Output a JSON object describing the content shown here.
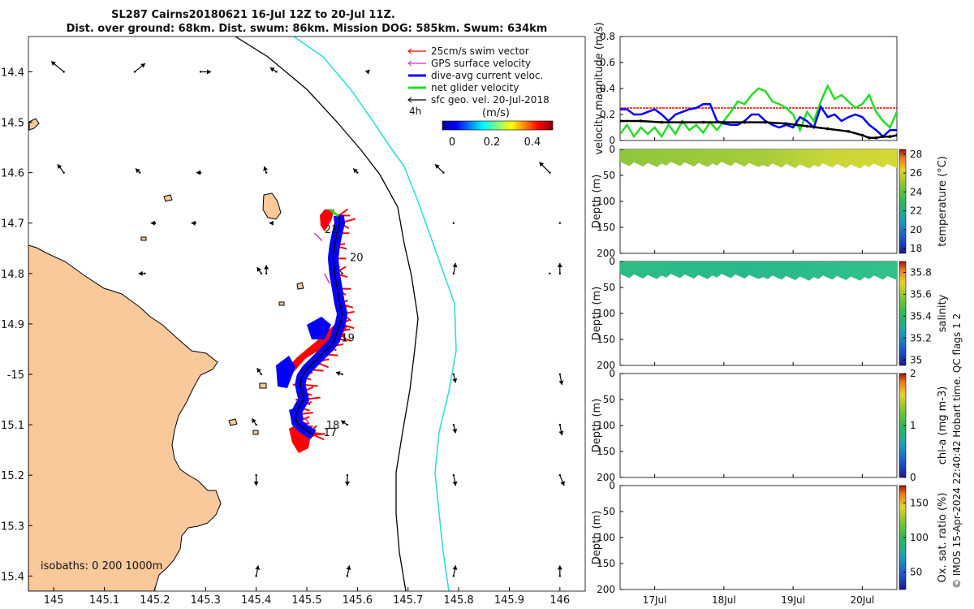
{
  "title_line1": "SL287 Cairns20180621 16-Jul 12Z to 20-Jul 11Z.",
  "title_line2": "Dist. over ground: 68km. Dist. swum: 86km. Mission DOG: 585km. Swum: 634km",
  "footer_text": "© IMOS 15-Apr-2024 22:40:42 Hobart time. QC flags 1  2",
  "colors": {
    "land": "#f9c89b",
    "ocean": "#ffffff",
    "swim": "#ff0000",
    "gps": "#cc33cc",
    "current": "#0000ff",
    "net": "#22dd22",
    "geo": "#000000",
    "isobath200": "#000000",
    "isobath1000": "#33dddd"
  },
  "chart_data": [
    {
      "id": "map",
      "type": "scatter",
      "title": "glider track map",
      "xlim": [
        144.95,
        146.05
      ],
      "ylim": [
        -15.43,
        -14.33
      ],
      "x_ticks": [
        145,
        145.1,
        145.2,
        145.3,
        145.4,
        145.5,
        145.6,
        145.7,
        145.8,
        145.9,
        146
      ],
      "x_tick_labels": [
        "145",
        "145.1",
        "145.2",
        "145.3",
        "145.4",
        "145.5",
        "145.6",
        "145.7",
        "145.8",
        "145.9",
        "146"
      ],
      "y_ticks": [
        -14.4,
        -14.5,
        -14.6,
        -14.7,
        -14.8,
        -14.9,
        -15,
        -15.1,
        -15.2,
        -15.3,
        -15.4
      ],
      "y_tick_labels": [
        "14.4",
        "14.5",
        "14.6",
        "14.7",
        "14.8",
        "14.9",
        "-15",
        "15.1",
        "15.2",
        "15.3",
        "15.4"
      ],
      "legend": {
        "placement": "top-right",
        "entries": [
          "25cm/s swim vector",
          "GPS surface velocity",
          "dive-avg current veloc.",
          "net glider velocity",
          "sfc geo. vel. 20-Jul-2018"
        ],
        "scale_label": "4h"
      },
      "colorbar": {
        "label": "(m/s)",
        "ticks": [
          "0",
          "0.2",
          "0.4"
        ],
        "range": [
          -0.05,
          0.5
        ]
      },
      "isobaths_label": "isobaths: 0   200  1000m",
      "track": {
        "lon": [
          145.563,
          145.565,
          145.56,
          145.555,
          145.552,
          145.555,
          145.56,
          145.565,
          145.57,
          145.566,
          145.56,
          145.556,
          145.545,
          145.53,
          145.515,
          145.5,
          145.49,
          145.487,
          145.49,
          145.494,
          145.485,
          145.478,
          145.48,
          145.49,
          145.505,
          145.513
        ],
        "lat": [
          -14.685,
          -14.7,
          -14.72,
          -14.745,
          -14.77,
          -14.8,
          -14.83,
          -14.86,
          -14.88,
          -14.9,
          -14.915,
          -14.93,
          -14.945,
          -14.96,
          -14.975,
          -14.99,
          -15.005,
          -15.02,
          -15.035,
          -15.05,
          -15.065,
          -15.08,
          -15.095,
          -15.105,
          -15.115,
          -15.12
        ]
      },
      "day_labels": [
        {
          "text": "21",
          "lon": 145.535,
          "lat": -14.72
        },
        {
          "text": "20",
          "lon": 145.585,
          "lat": -14.775
        },
        {
          "text": "19",
          "lon": 145.568,
          "lat": -14.935
        },
        {
          "text": "18",
          "lon": 145.538,
          "lat": -15.108
        },
        {
          "text": "17",
          "lon": 145.533,
          "lat": -15.122
        }
      ],
      "geo_vectors": {
        "lon": [
          145.02,
          145.16,
          145.29,
          145.44,
          145.62,
          145.02,
          145.17,
          145.29,
          145.42,
          145.6,
          145.77,
          145.98,
          145.2,
          145.28,
          145.43,
          145.79,
          146.0,
          145.18,
          145.42,
          145.98,
          145.41,
          145.57,
          145.79,
          146.0,
          145.41,
          145.57,
          145.79,
          146.0,
          145.4,
          145.58,
          145.79,
          146.0,
          145.4,
          145.58,
          145.79,
          146.0,
          145.4,
          145.58,
          145.79,
          146.0
        ],
        "lat": [
          -14.4,
          -14.4,
          -14.4,
          -14.4,
          -14.4,
          -14.6,
          -14.6,
          -14.6,
          -14.6,
          -14.6,
          -14.6,
          -14.6,
          -14.7,
          -14.7,
          -14.7,
          -14.7,
          -14.7,
          -14.8,
          -14.8,
          -14.8,
          -14.8,
          -14.8,
          -14.8,
          -14.8,
          -15.0,
          -15.0,
          -15.0,
          -15.0,
          -15.1,
          -15.1,
          -15.1,
          -15.1,
          -15.2,
          -15.2,
          -15.2,
          -15.2,
          -15.4,
          -15.4,
          -15.4,
          -15.4
        ],
        "u": [
          -0.06,
          0.05,
          0.05,
          -0.03,
          0.01,
          -0.03,
          -0.02,
          -0.02,
          -0.01,
          -0.02,
          -0.04,
          -0.05,
          -0.02,
          -0.02,
          -0.01,
          0.0,
          0.0,
          -0.03,
          0.0,
          0.0,
          -0.02,
          -0.03,
          0.01,
          0.0,
          -0.02,
          -0.03,
          0.01,
          0.01,
          -0.02,
          -0.03,
          0.01,
          0.01,
          0.0,
          0.0,
          0.01,
          0.02,
          0.01,
          0.01,
          0.01,
          0.0
        ],
        "v": [
          0.05,
          0.04,
          0.0,
          0.02,
          0.01,
          0.04,
          0.02,
          0.0,
          0.03,
          0.02,
          0.04,
          0.05,
          0.0,
          0.0,
          0.0,
          0.0,
          0.0,
          0.0,
          0.04,
          0.0,
          0.03,
          0.04,
          0.05,
          0.05,
          0.03,
          0.01,
          -0.04,
          -0.05,
          0.03,
          0.02,
          -0.04,
          -0.05,
          -0.05,
          -0.05,
          -0.05,
          -0.05,
          0.05,
          0.05,
          0.05,
          0.05
        ]
      }
    },
    {
      "id": "velocity",
      "type": "line",
      "ylabel": "velocity magnitude (m/s)",
      "ylim": [
        0,
        0.8
      ],
      "y_ticks": [
        0,
        0.2,
        0.4,
        0.6,
        0.8
      ],
      "y_tick_labels": [
        "0",
        "0.2",
        "0.4",
        "0.6",
        "0.8"
      ],
      "xlim": [
        16.5,
        20.5
      ],
      "x_ticks": [
        17,
        18,
        19,
        20
      ],
      "x_tick_labels": [
        "17Jul",
        "18Jul",
        "19Jul",
        "20Jul"
      ],
      "series": [
        {
          "name": "swim",
          "color": "#ff0000",
          "x": [
            16.5,
            20.5
          ],
          "y": [
            0.25,
            0.25
          ]
        },
        {
          "name": "net glider velocity",
          "color": "#22dd22",
          "x": [
            16.5,
            16.6,
            16.7,
            16.8,
            16.9,
            17.0,
            17.1,
            17.2,
            17.3,
            17.4,
            17.5,
            17.6,
            17.7,
            17.8,
            17.9,
            18.0,
            18.1,
            18.2,
            18.3,
            18.4,
            18.5,
            18.6,
            18.7,
            18.8,
            18.9,
            19.0,
            19.1,
            19.2,
            19.3,
            19.4,
            19.5,
            19.6,
            19.7,
            19.8,
            19.9,
            20.0,
            20.1,
            20.2,
            20.3,
            20.4,
            20.5
          ],
          "y": [
            0.05,
            0.12,
            0.03,
            0.1,
            0.05,
            0.1,
            0.03,
            0.12,
            0.05,
            0.15,
            0.08,
            0.12,
            0.06,
            0.14,
            0.08,
            0.15,
            0.22,
            0.3,
            0.28,
            0.35,
            0.4,
            0.38,
            0.3,
            0.28,
            0.25,
            0.2,
            0.08,
            0.22,
            0.15,
            0.3,
            0.42,
            0.32,
            0.35,
            0.3,
            0.25,
            0.28,
            0.35,
            0.22,
            0.15,
            0.1,
            0.22
          ]
        },
        {
          "name": "dive-avg current",
          "color": "#0000ff",
          "x": [
            16.5,
            16.6,
            16.7,
            16.8,
            16.9,
            17.0,
            17.1,
            17.2,
            17.3,
            17.4,
            17.5,
            17.6,
            17.7,
            17.8,
            17.9,
            18.0,
            18.1,
            18.2,
            18.3,
            18.4,
            18.5,
            18.6,
            18.7,
            18.8,
            18.9,
            19.0,
            19.1,
            19.2,
            19.3,
            19.4,
            19.5,
            19.6,
            19.7,
            19.8,
            19.9,
            20.0,
            20.1,
            20.2,
            20.3,
            20.4,
            20.5
          ],
          "y": [
            0.24,
            0.24,
            0.2,
            0.2,
            0.22,
            0.24,
            0.2,
            0.15,
            0.2,
            0.22,
            0.24,
            0.25,
            0.28,
            0.28,
            0.15,
            0.13,
            0.12,
            0.12,
            0.15,
            0.2,
            0.2,
            0.15,
            0.12,
            0.1,
            0.12,
            0.1,
            0.18,
            0.15,
            0.1,
            0.26,
            0.18,
            0.2,
            0.15,
            0.18,
            0.2,
            0.18,
            0.12,
            0.08,
            0.03,
            0.08,
            0.08
          ]
        },
        {
          "name": "sfc geo. vel.",
          "color": "#000000",
          "x": [
            16.5,
            16.8,
            17.1,
            17.4,
            17.7,
            18.0,
            18.3,
            18.6,
            18.9,
            19.2,
            19.5,
            19.8,
            20.0,
            20.1,
            20.2,
            20.3,
            20.4,
            20.5
          ],
          "y": [
            0.15,
            0.15,
            0.14,
            0.14,
            0.14,
            0.14,
            0.14,
            0.14,
            0.13,
            0.11,
            0.09,
            0.07,
            0.04,
            0.02,
            0.02,
            0.03,
            0.03,
            0.04
          ]
        }
      ]
    },
    {
      "id": "temperature",
      "type": "heatmap",
      "ylabel": "Depth (m)",
      "ylim": [
        200,
        0
      ],
      "y_ticks": [
        0,
        50,
        100,
        150,
        200
      ],
      "y_tick_labels": [
        "0",
        "50",
        "100",
        "150",
        "200"
      ],
      "colorbar": {
        "label": "temperature (°C)",
        "range": [
          17.5,
          28.5
        ],
        "ticks": [
          "18",
          "20",
          "22",
          "24",
          "26",
          "28"
        ]
      },
      "depth_range": [
        0,
        35
      ],
      "values_start_end": [
        24.0,
        25.2
      ]
    },
    {
      "id": "salinity",
      "type": "heatmap",
      "ylabel": "Depth (m)",
      "ylim": [
        200,
        0
      ],
      "y_ticks": [
        0,
        50,
        100,
        150,
        200
      ],
      "y_tick_labels": [
        "0",
        "50",
        "100",
        "150",
        "200"
      ],
      "colorbar": {
        "label": "salinity",
        "range": [
          34.95,
          35.9
        ],
        "ticks": [
          "35",
          "35.2",
          "35.4",
          "35.6",
          "35.8"
        ]
      },
      "depth_range": [
        0,
        35
      ],
      "values_start_end": [
        35.3,
        35.35
      ]
    },
    {
      "id": "chla",
      "type": "heatmap",
      "ylabel": "Depth (m)",
      "ylim": [
        200,
        0
      ],
      "y_ticks": [
        0,
        50,
        100,
        150,
        200
      ],
      "y_tick_labels": [
        "0",
        "50",
        "100",
        "150",
        "200"
      ],
      "colorbar": {
        "label": "chl-a (mg m-3)",
        "range": [
          0,
          2
        ],
        "ticks": [
          "0",
          "1",
          "2"
        ]
      }
    },
    {
      "id": "oxygen",
      "type": "heatmap",
      "ylabel": "Depth (m)",
      "ylim": [
        200,
        0
      ],
      "y_ticks": [
        0,
        50,
        100,
        150,
        200
      ],
      "y_tick_labels": [
        "0",
        "50",
        "100",
        "150",
        "200"
      ],
      "x_ticks": [
        17,
        18,
        19,
        20
      ],
      "x_tick_labels": [
        "17Jul",
        "18Jul",
        "19Jul",
        "20Jul"
      ],
      "colorbar": {
        "label": "Ox. sat. ratio (%)",
        "range": [
          25,
          175
        ],
        "ticks": [
          "50",
          "100",
          "150"
        ]
      }
    }
  ]
}
